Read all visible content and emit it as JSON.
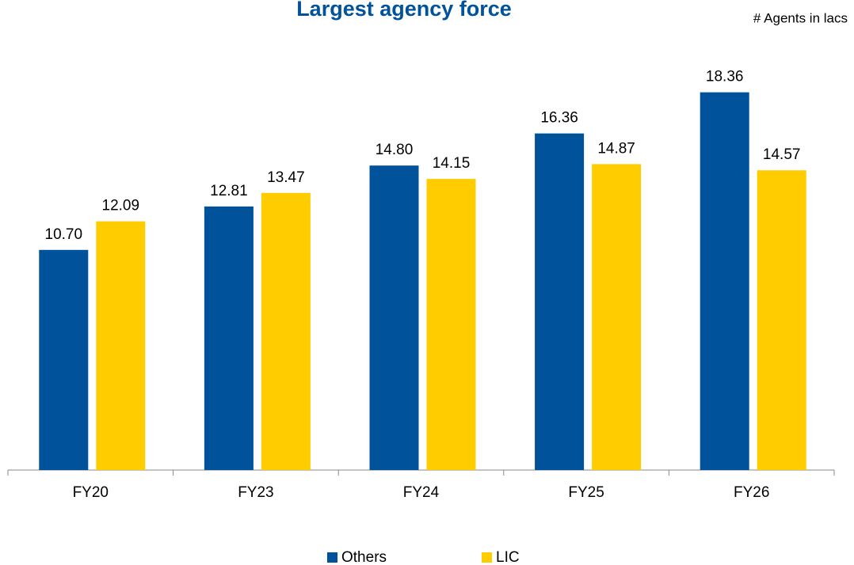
{
  "chart_data": {
    "type": "bar",
    "title": "Largest agency force",
    "annotation": "# Agents in lacs",
    "categories": [
      "FY20",
      "FY23",
      "FY24",
      "FY25",
      "FY26"
    ],
    "series": [
      {
        "name": "Others",
        "color": "#00529b",
        "values": [
          10.7,
          12.81,
          14.8,
          16.36,
          18.36
        ],
        "value_labels": [
          "10.70",
          "12.81",
          "14.80",
          "16.36",
          "18.36"
        ]
      },
      {
        "name": "LIC",
        "color": "#ffcc00",
        "values": [
          12.09,
          13.47,
          14.15,
          14.87,
          14.57
        ],
        "value_labels": [
          "12.09",
          "13.47",
          "14.15",
          "14.87",
          "14.57"
        ]
      }
    ],
    "ylim": [
      0,
      20
    ],
    "legend": "bottom"
  }
}
